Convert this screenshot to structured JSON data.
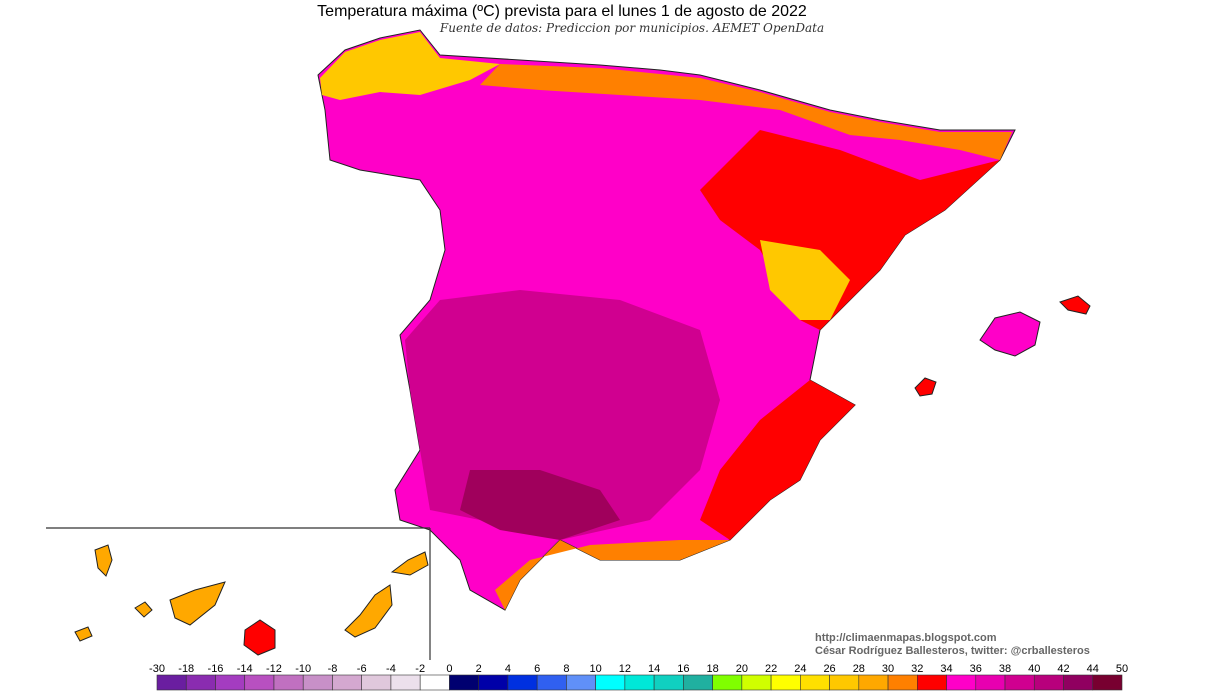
{
  "title": "Temperatura máxima (ºC) prevista para el lunes 1 de agosto de 2022",
  "subtitle": "Fuente de datos: Prediccion por municipios. AEMET OpenData",
  "credits": [
    "http://climaenmapas.blogspot.com",
    "César Rodríguez Ballesteros, twitter: @crballesteros"
  ],
  "legend": {
    "ticks": [
      -30,
      -18,
      -16,
      -14,
      -12,
      -10,
      -8,
      -6,
      -4,
      -2,
      0,
      2,
      4,
      6,
      8,
      10,
      12,
      14,
      16,
      18,
      20,
      22,
      24,
      26,
      28,
      30,
      32,
      34,
      36,
      38,
      40,
      42,
      44,
      50
    ],
    "colors": [
      "#6a1ea0",
      "#8a2cb0",
      "#a43cc0",
      "#b850c0",
      "#c070c0",
      "#c890c8",
      "#d4a8d0",
      "#e0c8dc",
      "#ece0ec",
      "#ffffff",
      "#000070",
      "#0000a8",
      "#0030e0",
      "#3060f0",
      "#6090f8",
      "#00ffff",
      "#00e8d8",
      "#10d0c0",
      "#20b0a0",
      "#80ff00",
      "#d0ff00",
      "#ffff00",
      "#ffe000",
      "#ffc800",
      "#ffa800",
      "#ff8000",
      "#ff0000",
      "#ff00c8",
      "#e800b0",
      "#d00090",
      "#b8007c",
      "#900060",
      "#780030"
    ]
  }
}
